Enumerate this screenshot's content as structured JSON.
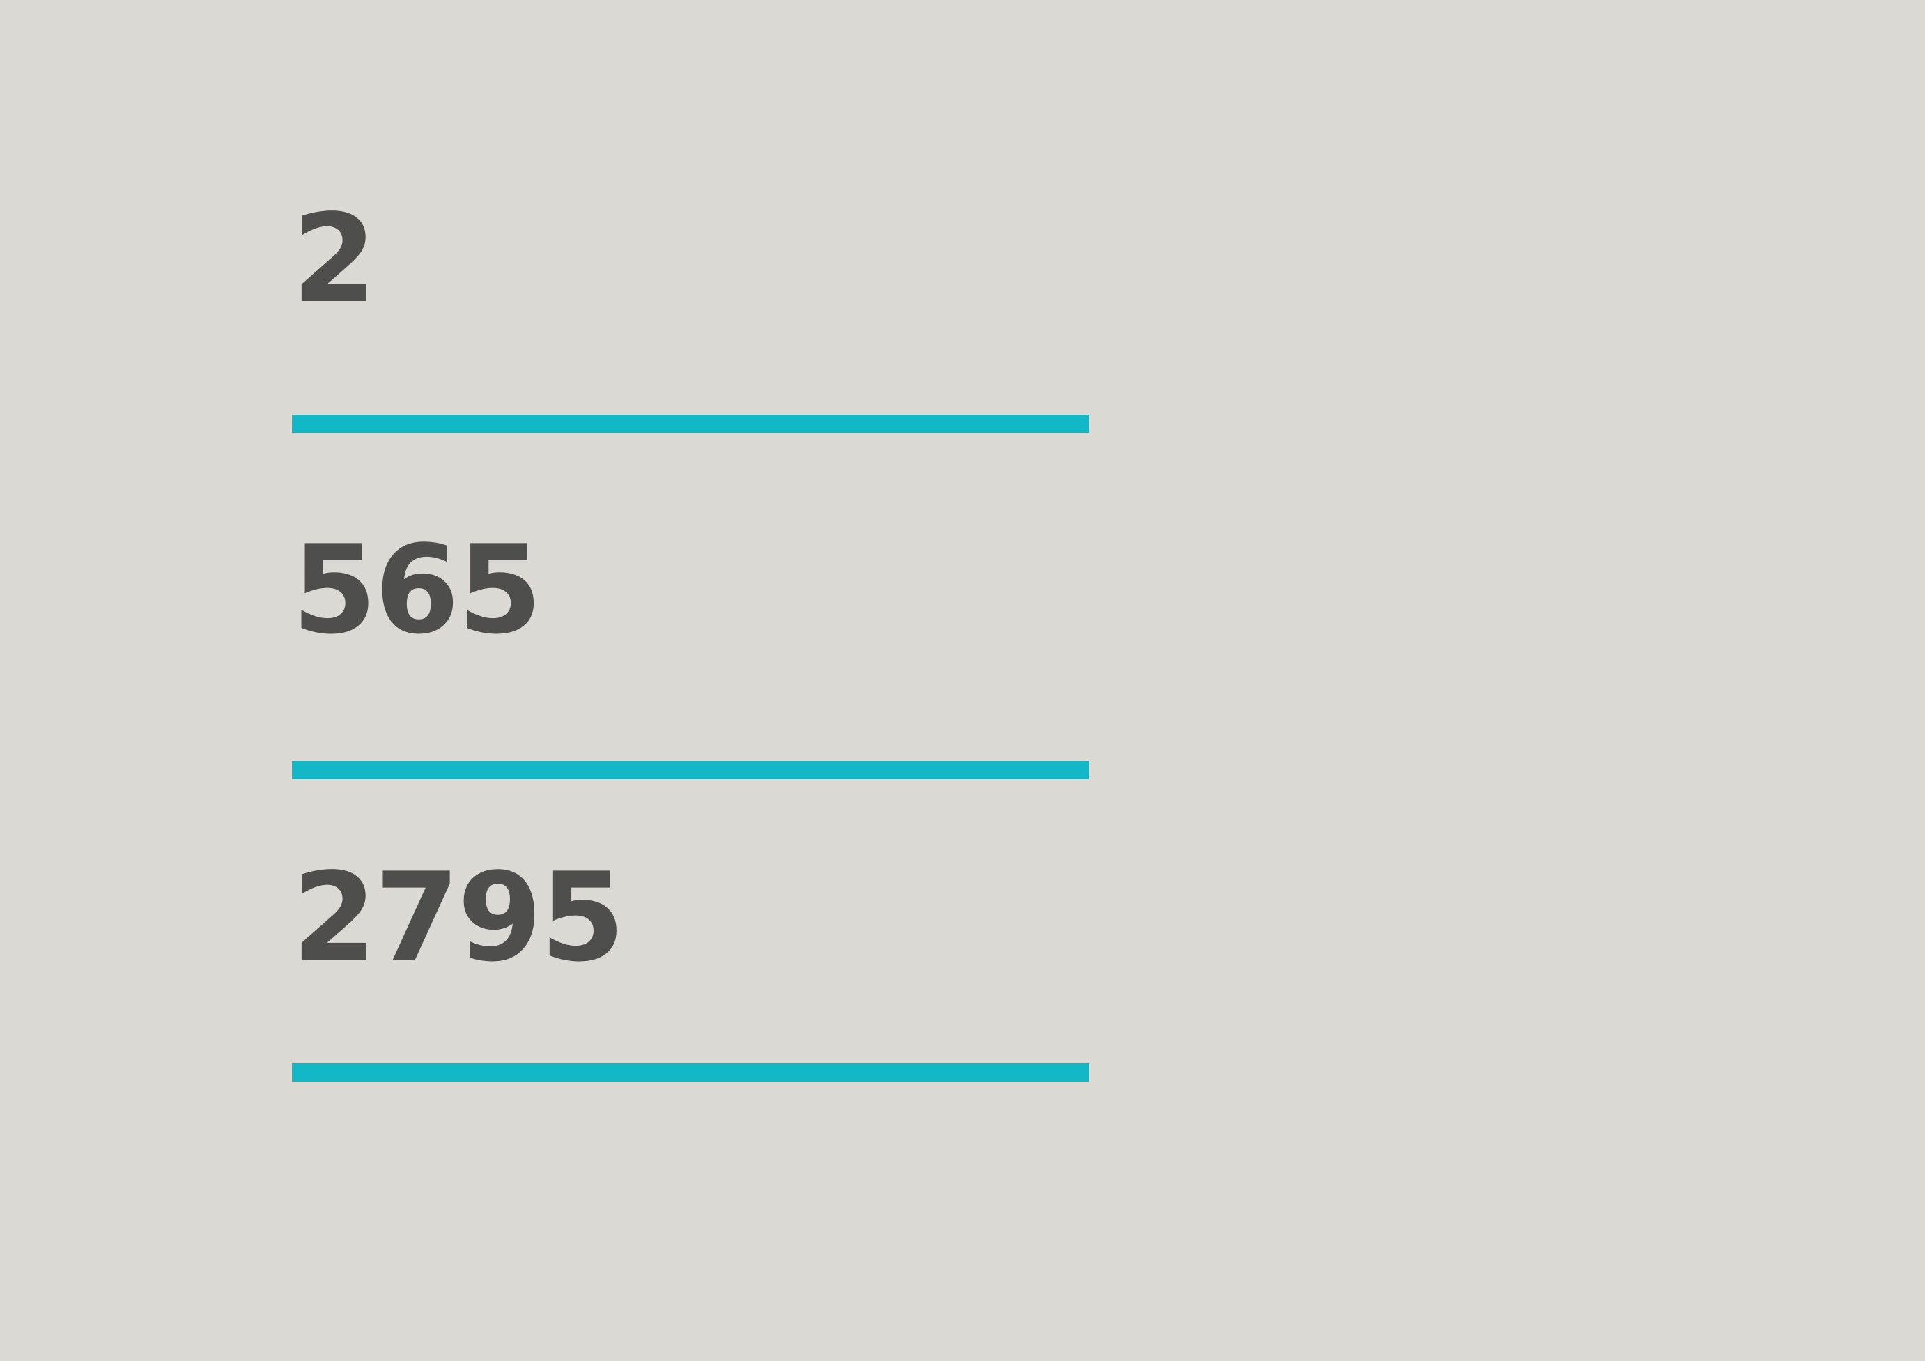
{
  "stats": [
    {
      "value": "2"
    },
    {
      "value": "565"
    },
    {
      "value": "2795"
    }
  ],
  "colors": {
    "background": "#dad9d4",
    "number": "#4e4e4c",
    "divider": "#12b8c6"
  }
}
